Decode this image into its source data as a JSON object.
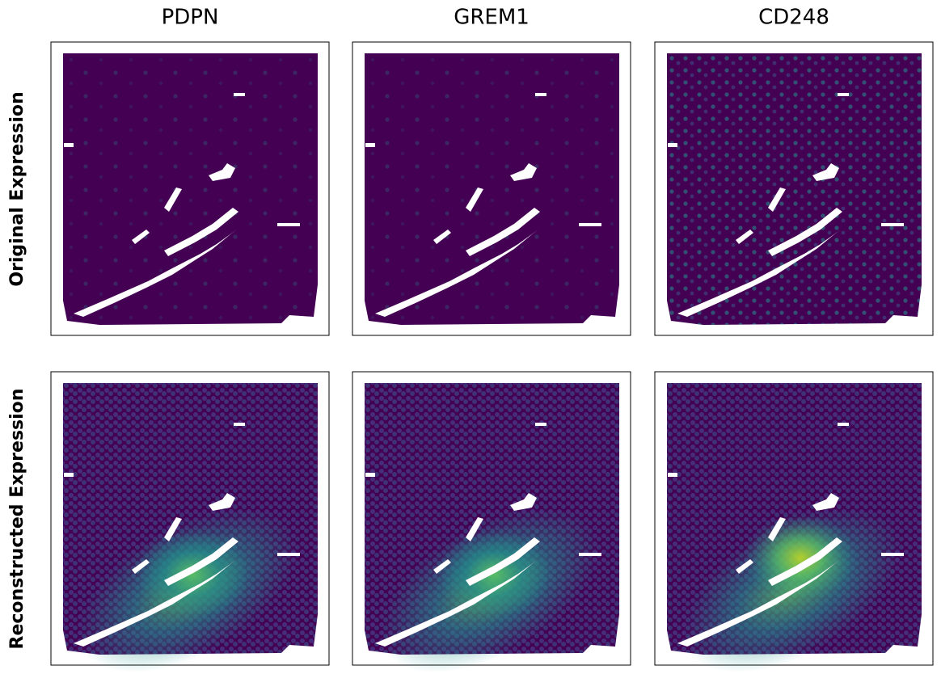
{
  "columns": [
    "PDPN",
    "GREM1",
    "CD248"
  ],
  "rows": [
    "Original Expression",
    "Reconstructed Expression"
  ]
}
